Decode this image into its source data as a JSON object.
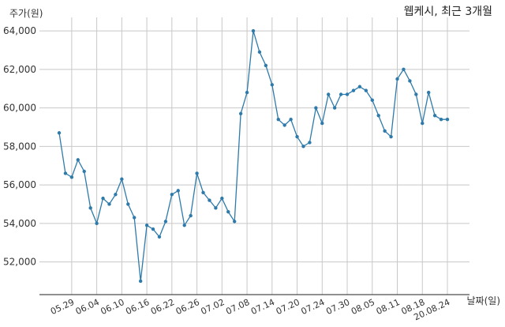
{
  "chart_data": {
    "type": "line",
    "title": "웹케시, 최근 3개월",
    "ylabel": "주가(원)",
    "xlabel": "날짜(일)",
    "ylim": [
      50300,
      64700
    ],
    "yticks": [
      52000,
      54000,
      56000,
      58000,
      60000,
      62000,
      64000
    ],
    "ytick_labels": [
      "52,000",
      "54,000",
      "56,000",
      "58,000",
      "60,000",
      "62,000",
      "64,000"
    ],
    "xtick_labels": [
      "05.29",
      "06.04",
      "06.10",
      "06.16",
      "06.22",
      "06.26",
      "07.02",
      "07.08",
      "07.14",
      "07.20",
      "07.24",
      "07.30",
      "08.05",
      "08.11",
      "08.18",
      "20.08.24"
    ],
    "xtick_indices": [
      2,
      6,
      10,
      14,
      18,
      22,
      26,
      30,
      34,
      38,
      42,
      46,
      50,
      54,
      58,
      62
    ],
    "grid": true,
    "color": "#2e7bab",
    "series": [
      {
        "values": [
          58700,
          56600,
          56400,
          57300,
          56700,
          54800,
          54000,
          55300,
          55000,
          55500,
          56300,
          55000,
          54300,
          51000,
          53900,
          53700,
          53300,
          54100,
          55500,
          55700,
          53900,
          54400,
          56600,
          55600,
          55200,
          54800,
          55300,
          54600,
          54100,
          59700,
          60800,
          64000,
          62900,
          62200,
          61200,
          59400,
          59100,
          59400,
          58500,
          58000,
          58200,
          60000,
          59200,
          60700,
          60000,
          60700,
          60700,
          60900,
          61100,
          60900,
          60400,
          59600,
          58800,
          58500,
          61500,
          62000,
          61400,
          60700,
          59200,
          60800,
          59600,
          59400,
          59400
        ]
      }
    ]
  }
}
